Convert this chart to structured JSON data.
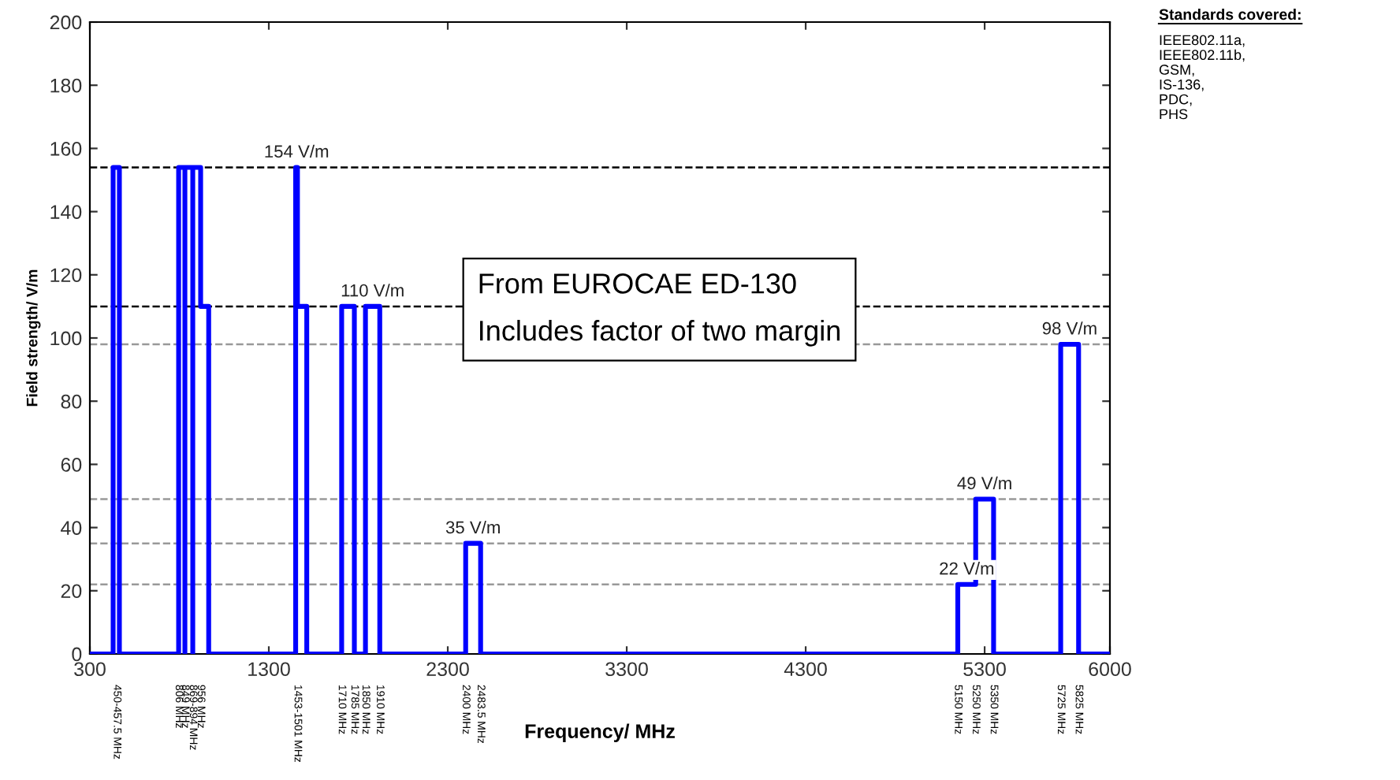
{
  "chart_data": {
    "type": "line",
    "xlabel": "Frequency/ MHz",
    "ylabel": "Field strength/ V/m",
    "xlim": [
      300,
      6000
    ],
    "xticks": [
      300,
      1300,
      2300,
      3300,
      4300,
      5300,
      6000
    ],
    "ylim": [
      0,
      200
    ],
    "yticks": [
      0,
      20,
      40,
      60,
      80,
      100,
      120,
      140,
      160,
      180,
      200
    ],
    "grid": false,
    "legend": false,
    "marker": "none",
    "line_style": "solid",
    "series": [
      {
        "color": "#0000ff",
        "x": [
          300,
          430,
          430,
          465,
          465,
          796,
          796,
          831,
          831,
          831,
          875,
          875,
          875,
          919,
          919,
          964,
          964,
          1450,
          1450,
          1460,
          1460,
          1512,
          1512,
          1707,
          1707,
          1778,
          1778,
          1840,
          1840,
          1920,
          1920,
          2400,
          2400,
          2483.5,
          2483.5,
          5150,
          5150,
          5250,
          5250,
          5350,
          5350,
          5725,
          5725,
          5825,
          5825,
          6000
        ],
        "values": [
          0,
          0,
          154,
          154,
          0,
          0,
          154,
          154,
          0,
          154,
          154,
          0,
          154,
          154,
          110,
          110,
          0,
          0,
          154,
          154,
          110,
          110,
          0,
          0,
          110,
          110,
          0,
          0,
          110,
          110,
          0,
          0,
          35,
          35,
          0,
          0,
          22,
          22,
          49,
          49,
          0,
          0,
          98,
          98,
          0,
          0
        ]
      }
    ],
    "ref_lines": [
      {
        "axis": "y",
        "value": 154,
        "label": "154 V/m",
        "color": "#000000",
        "line_style": "dashed"
      },
      {
        "axis": "y",
        "value": 110,
        "label": "110 V/m",
        "color": "#000000",
        "line_style": "dashed"
      },
      {
        "axis": "y",
        "value": 35,
        "label": "35 V/m",
        "color": "#999999",
        "line_style": "dashed"
      },
      {
        "axis": "y",
        "value": 22,
        "label": "22 V/m",
        "color": "#999999",
        "line_style": "dashed"
      },
      {
        "axis": "y",
        "value": 49,
        "label": "49 V/m",
        "color": "#999999",
        "line_style": "dashed"
      },
      {
        "axis": "y",
        "value": 98,
        "label": "98 V/m",
        "color": "#999999",
        "line_style": "dashed"
      }
    ],
    "annotations": [
      "From EUROCAE ED-130\nIncludes factor of two margin",
      "Standards covered:",
      "IEEE802.11a,\nIEEE802.11b,\nGSM,\nIS-136,\nPDC,\nPHS",
      {
        "text": "450-457.5 MHz",
        "x": 450,
        "y": 0
      },
      {
        "text": "806 MHz",
        "x": 796,
        "y": 0
      },
      {
        "text": "849 MHz",
        "x": 831,
        "y": 0
      },
      {
        "text": "869-894 MHz",
        "x": 875,
        "y": 0
      },
      {
        "text": "956 MHz",
        "x": 919,
        "y": 0
      },
      {
        "text": "1453-1501 MHz",
        "x": 1460,
        "y": 0
      },
      {
        "text": "1710 MHz",
        "x": 1707,
        "y": 0
      },
      {
        "text": "1785 MHz",
        "x": 1778,
        "y": 0
      },
      {
        "text": "1850 MHz",
        "x": 1840,
        "y": 0
      },
      {
        "text": "1910 MHz",
        "x": 1920,
        "y": 0
      },
      {
        "text": "2400 MHz",
        "x": 2400,
        "y": 0
      },
      {
        "text": "2483.5 MHz",
        "x": 2483.5,
        "y": 0
      },
      {
        "text": "5150 MHz",
        "x": 5150,
        "y": 0
      },
      "5250 MHz",
      {
        "text": "5350 MHz",
        "x": 5350,
        "y": 0
      },
      {
        "text": "5725 MHz",
        "x": 5725,
        "y": 0
      },
      {
        "text": "5825 MHz",
        "x": 5825,
        "y": 0
      }
    ]
  }
}
